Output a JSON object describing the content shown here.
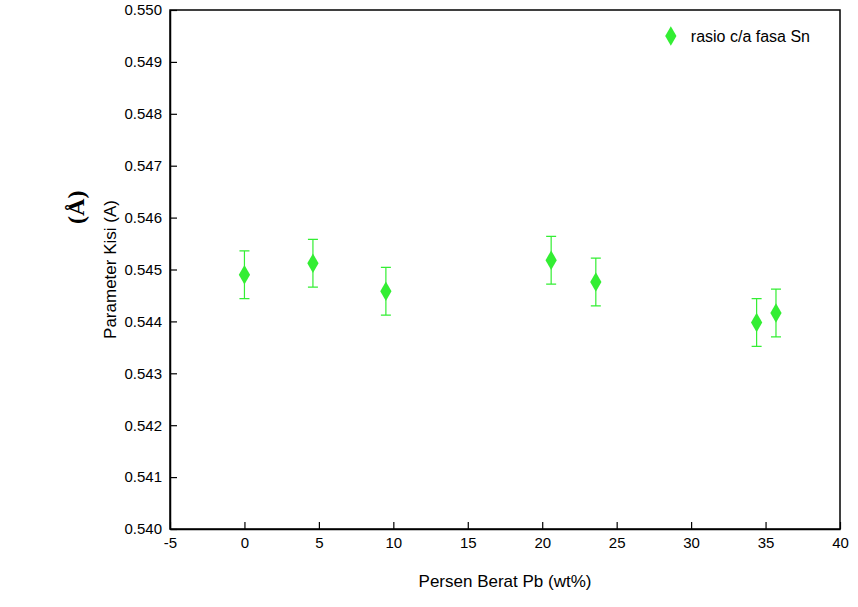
{
  "chart_data": {
    "type": "scatter",
    "x_label": "Persen Berat Pb (wt%)",
    "y_label": "Parameter Kisi (A)",
    "annotations": [
      "(Å)"
    ],
    "series": [
      {
        "name": "rasio c/a fasa Sn",
        "color": "#33ee33",
        "marker": "diamond",
        "x": [
          0,
          4.6,
          9.5,
          20.6,
          23.6,
          34.4,
          35.7
        ],
        "values": [
          0.5449,
          0.54512,
          0.54458,
          0.54518,
          0.54476,
          0.54398,
          0.54416
        ],
        "errors": [
          0.00046,
          0.00046,
          0.00046,
          0.00046,
          0.00046,
          0.00046,
          0.00046
        ]
      }
    ],
    "xlim": [
      -5,
      40
    ],
    "xticks": [
      -5,
      0,
      5,
      10,
      15,
      20,
      25,
      30,
      35,
      40
    ],
    "ylim": [
      0.54,
      0.55
    ],
    "yticks": [
      {
        "value": 0.54,
        "label": "0.540"
      },
      {
        "value": 0.541,
        "label": "0.541"
      },
      {
        "value": 0.542,
        "label": "0.542"
      },
      {
        "value": 0.543,
        "label": "0.543"
      },
      {
        "value": 0.544,
        "label": "0.544"
      },
      {
        "value": 0.545,
        "label": "0.545"
      },
      {
        "value": 0.546,
        "label": "0.546"
      },
      {
        "value": 0.547,
        "label": "0.547"
      },
      {
        "value": 0.548,
        "label": "0.548"
      },
      {
        "value": 0.549,
        "label": "0.549"
      },
      {
        "value": 0.55,
        "label": "0.550"
      }
    ],
    "legend": "top-right",
    "grid": false
  }
}
